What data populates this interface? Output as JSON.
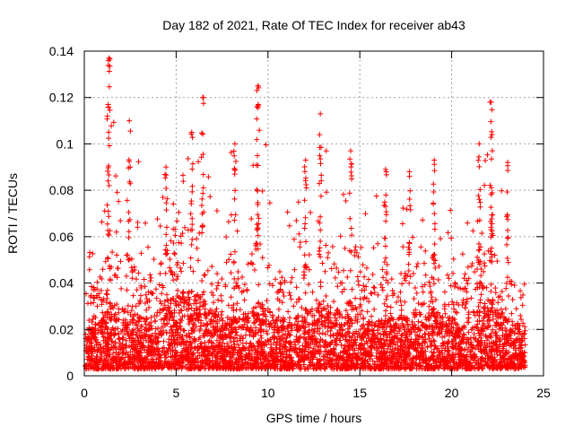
{
  "chart_data": {
    "type": "scatter",
    "title": "Day 182 of 2021, Rate Of TEC Index for receiver ab43",
    "xlabel": "GPS time / hours",
    "ylabel": "ROTI / TECUs",
    "xlim": [
      0,
      25
    ],
    "ylim": [
      0,
      0.14
    ],
    "x_ticks": [
      0,
      5,
      10,
      15,
      20,
      25
    ],
    "x_tick_labels": [
      "0",
      "5",
      "10",
      "15",
      "20",
      "25"
    ],
    "y_ticks": [
      0,
      0.02,
      0.04,
      0.06,
      0.08,
      0.1,
      0.12,
      0.14
    ],
    "y_tick_labels": [
      "0",
      "0.02",
      "0.04",
      "0.06",
      "0.08",
      "0.1",
      "0.12",
      "0.14"
    ],
    "grid": true,
    "legend": "none",
    "marker": "+",
    "marker_color": "#ff0000",
    "data_coverage_hours": [
      0,
      24
    ],
    "peaks": [
      {
        "x": 1.35,
        "y": 0.137
      },
      {
        "x": 1.3,
        "y": 0.117
      },
      {
        "x": 2.45,
        "y": 0.11
      },
      {
        "x": 6.45,
        "y": 0.12
      },
      {
        "x": 5.85,
        "y": 0.105
      },
      {
        "x": 9.45,
        "y": 0.125
      },
      {
        "x": 9.4,
        "y": 0.116
      },
      {
        "x": 12.85,
        "y": 0.113
      },
      {
        "x": 12.05,
        "y": 0.093
      },
      {
        "x": 14.5,
        "y": 0.097
      },
      {
        "x": 19.05,
        "y": 0.093
      },
      {
        "x": 21.5,
        "y": 0.1
      },
      {
        "x": 22.15,
        "y": 0.118
      },
      {
        "x": 22.2,
        "y": 0.104
      },
      {
        "x": 23.05,
        "y": 0.092
      },
      {
        "x": 8.2,
        "y": 0.1
      },
      {
        "x": 16.4,
        "y": 0.089
      },
      {
        "x": 17.7,
        "y": 0.088
      },
      {
        "x": 4.45,
        "y": 0.09
      }
    ],
    "envelope": {
      "x": [
        0,
        0.5,
        1,
        1.5,
        2,
        2.5,
        3,
        3.5,
        4,
        4.5,
        5,
        5.5,
        6,
        6.5,
        7,
        7.5,
        8,
        8.5,
        9,
        9.5,
        10,
        10.5,
        11,
        11.5,
        12,
        12.5,
        13,
        13.5,
        14,
        14.5,
        15,
        15.5,
        16,
        16.5,
        17,
        17.5,
        18,
        18.5,
        19,
        19.5,
        20,
        20.5,
        21,
        21.5,
        22,
        22.5,
        23,
        23.5,
        24
      ],
      "upper": [
        0.055,
        0.065,
        0.075,
        0.118,
        0.08,
        0.1,
        0.095,
        0.07,
        0.08,
        0.09,
        0.085,
        0.1,
        0.095,
        0.12,
        0.08,
        0.075,
        0.1,
        0.08,
        0.085,
        0.125,
        0.095,
        0.08,
        0.085,
        0.08,
        0.093,
        0.085,
        0.113,
        0.09,
        0.095,
        0.097,
        0.09,
        0.085,
        0.08,
        0.075,
        0.07,
        0.075,
        0.088,
        0.08,
        0.093,
        0.085,
        0.07,
        0.06,
        0.1,
        0.09,
        0.118,
        0.085,
        0.092,
        0.06,
        0.04
      ],
      "typical": [
        0.02,
        0.025,
        0.03,
        0.04,
        0.035,
        0.035,
        0.03,
        0.03,
        0.035,
        0.04,
        0.045,
        0.045,
        0.045,
        0.04,
        0.035,
        0.03,
        0.03,
        0.03,
        0.035,
        0.04,
        0.035,
        0.03,
        0.03,
        0.03,
        0.035,
        0.035,
        0.04,
        0.035,
        0.035,
        0.04,
        0.035,
        0.03,
        0.03,
        0.03,
        0.03,
        0.03,
        0.035,
        0.03,
        0.035,
        0.03,
        0.03,
        0.025,
        0.035,
        0.035,
        0.04,
        0.035,
        0.03,
        0.025,
        0.02
      ]
    }
  }
}
